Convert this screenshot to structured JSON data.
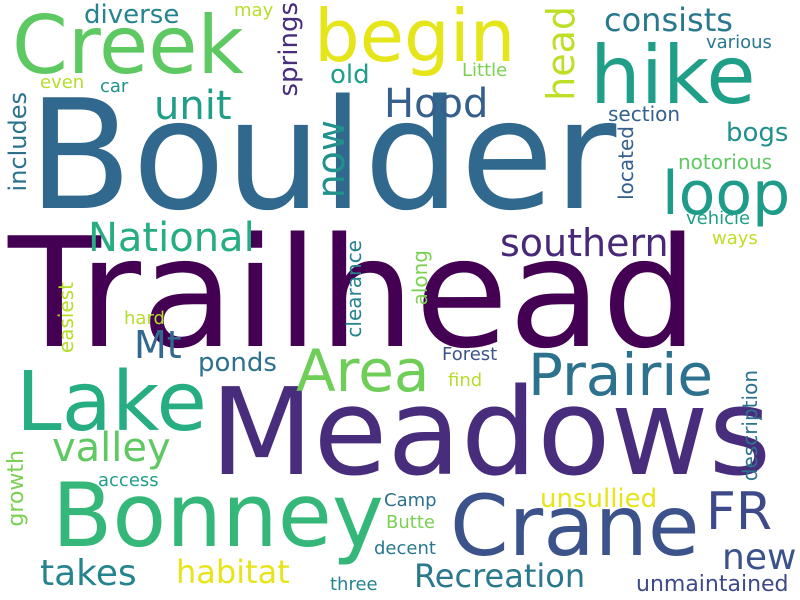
{
  "words": {
    "boulder": "Boulder",
    "trailhead": "Trailhead",
    "meadows": "Meadows",
    "begin": "begin",
    "creek": "Creek",
    "hike": "hike",
    "bonney": "Bonney",
    "crane": "Crane",
    "lake": "Lake",
    "prairie": "Prairie",
    "loop": "loop",
    "area": "Area",
    "consists": "consists",
    "diverse": "diverse",
    "may": "may",
    "springs": "springs",
    "head": "head",
    "various": "various",
    "even": "even",
    "car": "car",
    "little": "Little",
    "old": "old",
    "unit": "unit",
    "hood": "Hood",
    "includes": "includes",
    "now": "now",
    "section": "section",
    "bogs": "bogs",
    "notorious": "notorious",
    "located": "located",
    "vehicle": "vehicle",
    "national": "National",
    "southern": "southern",
    "ways": "ways",
    "mt": "Mt",
    "clearance": "clearance",
    "along": "along",
    "easiest": "easiest",
    "hard": "hard",
    "ponds": "ponds",
    "forest": "Forest",
    "find": "find",
    "valley": "valley",
    "description": "description",
    "access": "access",
    "growth": "growth",
    "unsullied": "unsullied",
    "fr": "FR",
    "camp": "Camp",
    "butte": "Butte",
    "decent": "decent",
    "new": "new",
    "takes": "takes",
    "habitat": "habitat",
    "recreation": "Recreation",
    "three": "three",
    "unmaintained": "unmaintained"
  }
}
